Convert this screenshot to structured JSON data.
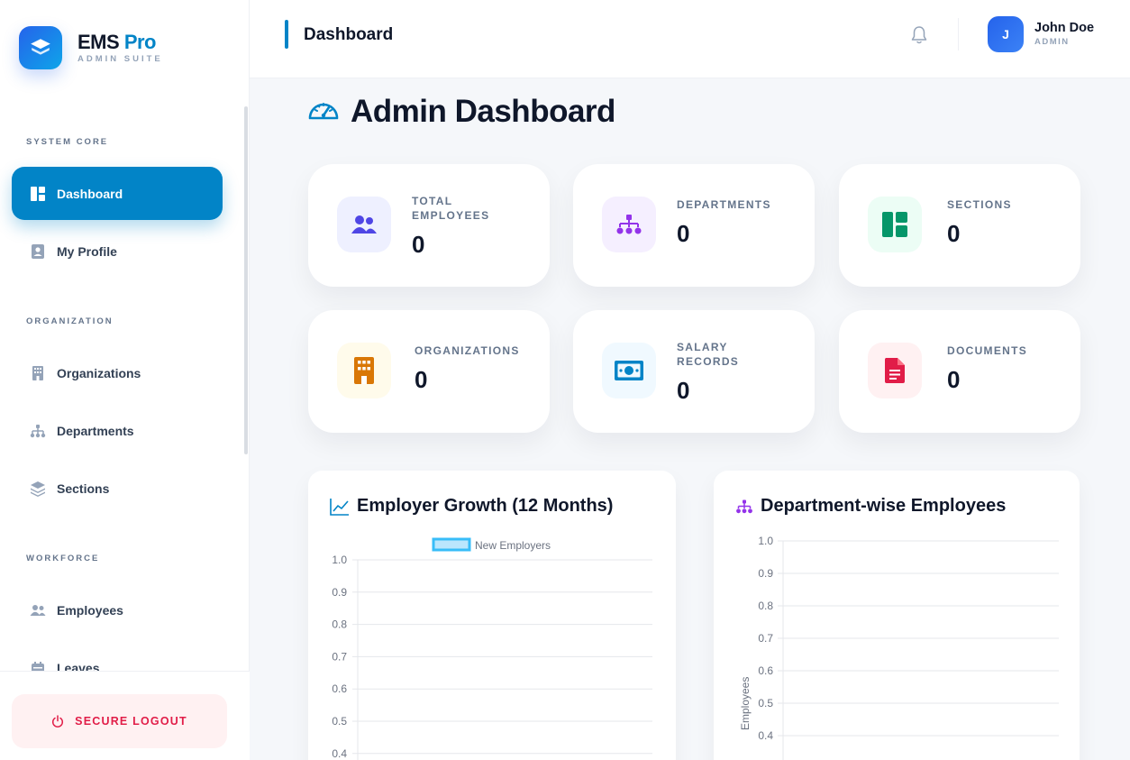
{
  "brand": {
    "name": "EMS",
    "name_accent": "Pro",
    "subtitle": "ADMIN SUITE"
  },
  "sidebar": {
    "sections": [
      {
        "label": "SYSTEM CORE"
      },
      {
        "label": "ORGANIZATION"
      },
      {
        "label": "WORKFORCE"
      }
    ],
    "items": [
      {
        "label": "Dashboard",
        "icon": "dashboard-icon",
        "active": true
      },
      {
        "label": "My Profile",
        "icon": "profile-badge-icon"
      },
      {
        "label": "Organizations",
        "icon": "building-icon"
      },
      {
        "label": "Departments",
        "icon": "sitemap-icon"
      },
      {
        "label": "Sections",
        "icon": "layers-icon"
      },
      {
        "label": "Employees",
        "icon": "users-icon"
      },
      {
        "label": "Leaves",
        "icon": "calendar-icon"
      }
    ],
    "logout_label": "SECURE LOGOUT"
  },
  "topbar": {
    "title": "Dashboard",
    "user": {
      "initial": "J",
      "name": "John Doe",
      "role": "ADMIN"
    }
  },
  "main": {
    "title": "Admin Dashboard",
    "stats": [
      {
        "label": "TOTAL EMPLOYEES",
        "value": "0",
        "icon": "users-icon",
        "color": "#4f46e5",
        "bg": "#eef0ff"
      },
      {
        "label": "DEPARTMENTS",
        "value": "0",
        "icon": "sitemap-icon",
        "color": "#9333ea",
        "bg": "#f5efff"
      },
      {
        "label": "SECTIONS",
        "value": "0",
        "icon": "layout-icon",
        "color": "#059669",
        "bg": "#ecfdf5"
      },
      {
        "label": "ORGANIZATIONS",
        "value": "0",
        "icon": "building-icon",
        "color": "#d97706",
        "bg": "#fffbeb"
      },
      {
        "label": "SALARY RECORDS",
        "value": "0",
        "icon": "money-bill-icon",
        "color": "#0284c7",
        "bg": "#f0f9ff"
      },
      {
        "label": "DOCUMENTS",
        "value": "0",
        "icon": "document-icon",
        "color": "#e11d48",
        "bg": "#fff1f2"
      }
    ]
  },
  "chart_data": [
    {
      "type": "bar",
      "title": "Employer Growth (12 Months)",
      "legend": "top",
      "series": [
        {
          "name": "New Employers",
          "values": []
        }
      ],
      "categories": [],
      "ylim": [
        0,
        1.0
      ],
      "yticks": [
        "1.0",
        "0.9",
        "0.8",
        "0.7",
        "0.6",
        "0.5",
        "0.4"
      ],
      "grid": true,
      "color": "#38bdf8"
    },
    {
      "type": "bar",
      "title": "Department-wise Employees",
      "ylabel": "Employees",
      "series": [
        {
          "values": []
        }
      ],
      "categories": [],
      "ylim": [
        0,
        1.0
      ],
      "yticks": [
        "1.0",
        "0.9",
        "0.8",
        "0.7",
        "0.6",
        "0.5",
        "0.4"
      ],
      "grid": true
    }
  ]
}
